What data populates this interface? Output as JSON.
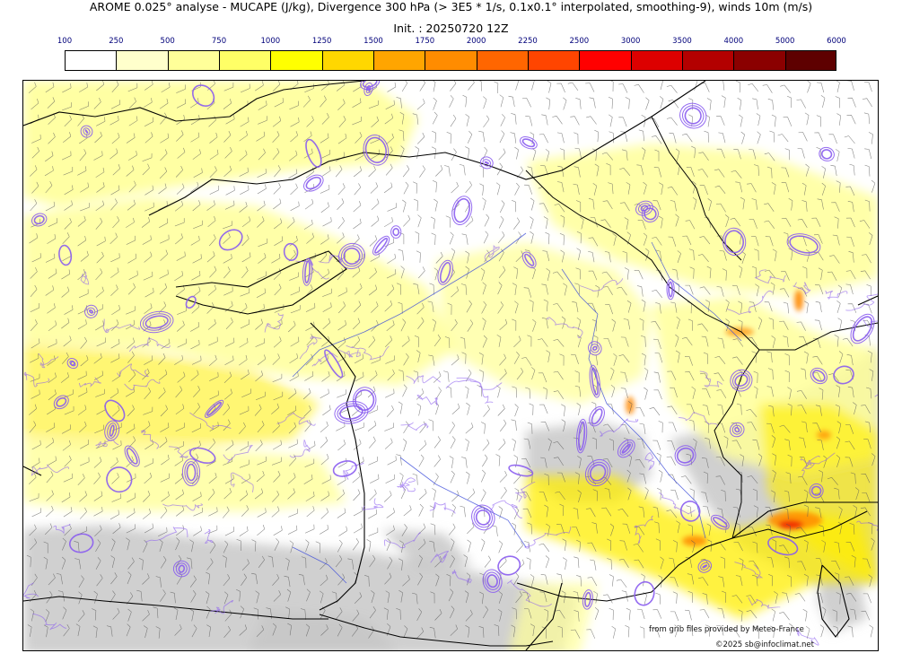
{
  "figure": {
    "title": "AROME 0.025° analyse - MUCAPE (J/kg), Divergence 300 hPa (> 3E5 * 1/s, 0.1x0.1° interpolated, smoothing-9), winds 10m (m/s)",
    "init": "Init. : 20250720 12Z"
  },
  "colorbar": {
    "ticks": [
      "100",
      "250",
      "500",
      "750",
      "1000",
      "1250",
      "1500",
      "1750",
      "2000",
      "2250",
      "2500",
      "3000",
      "3500",
      "4000",
      "5000",
      "6000"
    ],
    "colors": [
      "#ffffff",
      "#ffffcc",
      "#ffff99",
      "#ffff66",
      "#ffff00",
      "#ffd700",
      "#ffa500",
      "#ff8c00",
      "#ff6600",
      "#ff4500",
      "#ff0000",
      "#dd0000",
      "#b30000",
      "#8b0000",
      "#5e0000"
    ]
  },
  "map": {
    "colors": {
      "cape_low": "#ffff99",
      "cape_mid": "#ffee00",
      "cape_high": "#ff8800",
      "cape_peak": "#ee2200",
      "gray_terrain": "#c8c8c8",
      "divergence_contour": "#8a5cf0",
      "coastline": "#000000",
      "borders": "#000000",
      "rivers": "#3b4bd9",
      "barbs": "#555555"
    }
  },
  "credits": {
    "source": "from grib files provided by Meteo-France",
    "copyright": "©2025 sb@infoclimat.net"
  }
}
